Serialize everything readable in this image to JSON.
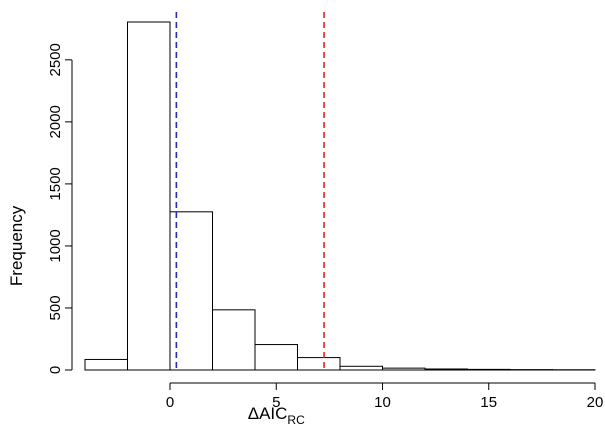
{
  "chart_data": {
    "type": "bar",
    "title": "",
    "xlabel": "ΔAIC",
    "xlabel_subscript": "RC",
    "ylabel": "Frequency",
    "bin_edges": [
      -4,
      -2,
      0,
      2,
      4,
      6,
      8,
      10,
      12,
      14,
      16,
      18,
      20
    ],
    "values": [
      85,
      2805,
      1275,
      485,
      205,
      100,
      30,
      15,
      8,
      5,
      3,
      2
    ],
    "xlim": [
      -4,
      20
    ],
    "ylim": [
      0,
      2805
    ],
    "x_ticks": [
      0,
      5,
      10,
      15,
      20
    ],
    "x_tick_labels": [
      "0",
      "5",
      "10",
      "15",
      "20"
    ],
    "y_ticks": [
      0,
      500,
      1000,
      1500,
      2000,
      2500
    ],
    "y_tick_labels": [
      "0",
      "500",
      "1000",
      "1500",
      "2000",
      "2500"
    ],
    "reference_lines": [
      {
        "x": 0.3,
        "color": "#2b2bb0",
        "style": "dashed"
      },
      {
        "x": 7.25,
        "color": "#e0262c",
        "style": "dashed"
      }
    ],
    "bar_fill": "#ffffff",
    "bar_stroke": "#000000",
    "grid": false,
    "legend": "none"
  }
}
